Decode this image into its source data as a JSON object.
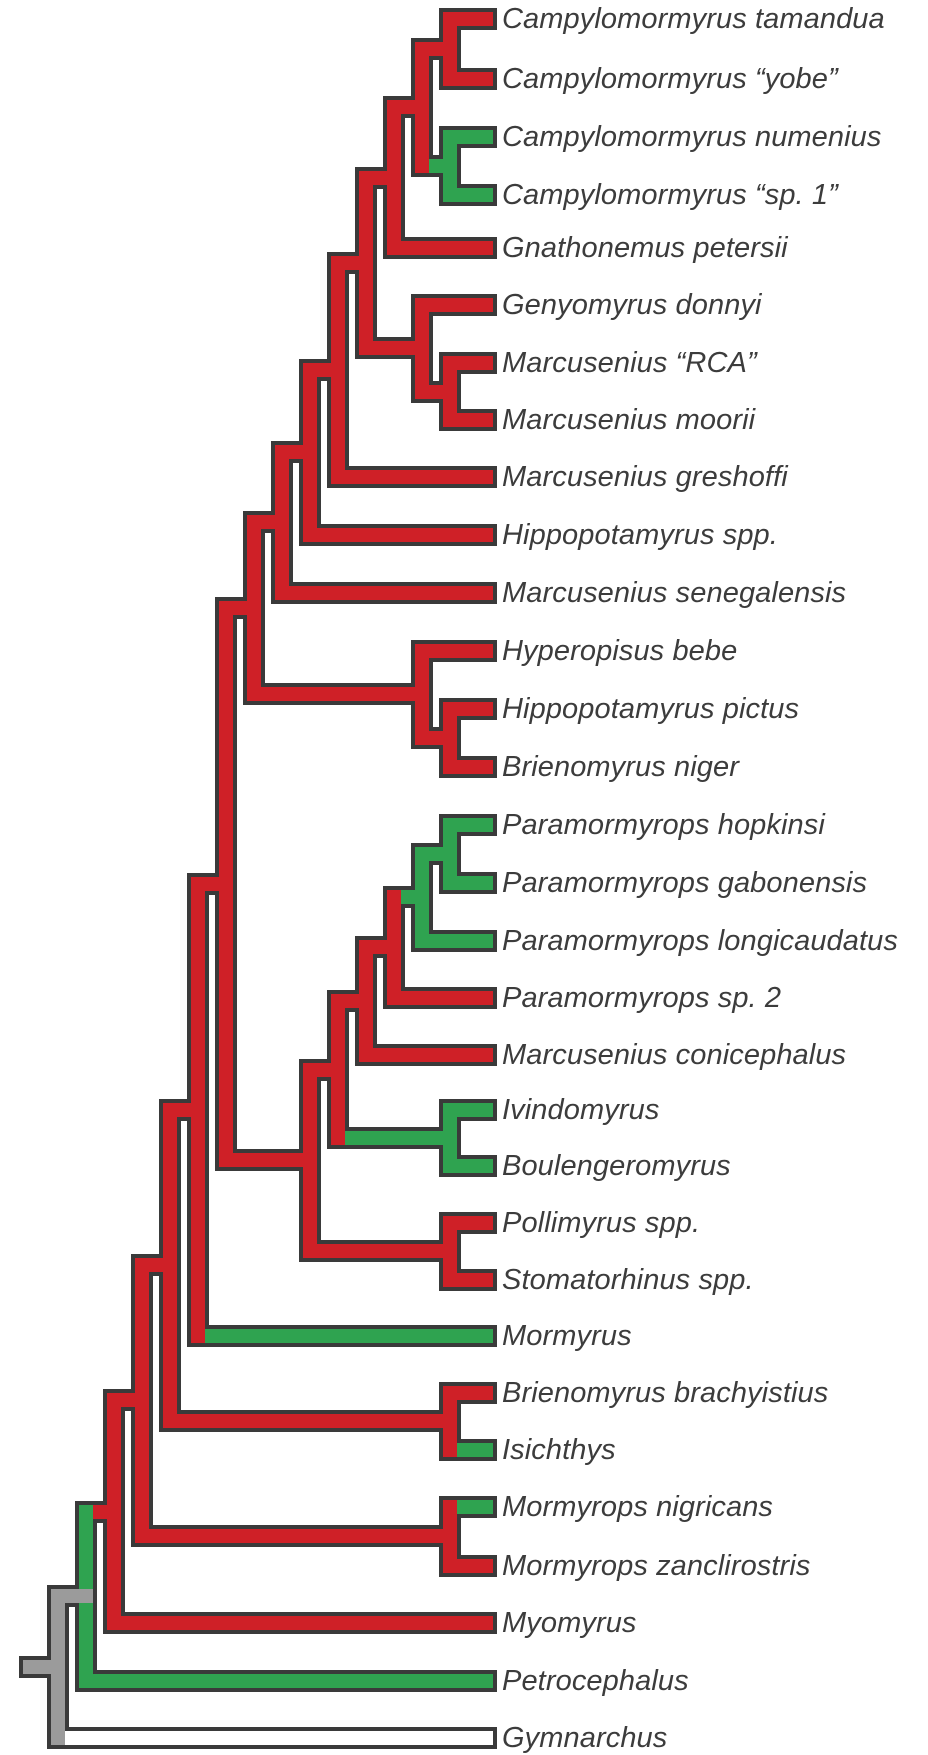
{
  "colors": {
    "red": "#cf2027",
    "green": "#2fa350",
    "gray": "#9b9b9b",
    "white": "#ffffff",
    "outline": "#3a3a3a",
    "label": "#3c3c3c"
  },
  "taxa": [
    "Campylomormyrus tamandua",
    "Campylomormyrus “yobe”",
    "Campylomormyrus numenius",
    "Campylomormyrus “sp. 1”",
    "Gnathonemus petersii",
    "Genyomyrus donnyi",
    "Marcusenius “RCA”",
    "Marcusenius moorii",
    "Marcusenius greshoffi",
    "Hippopotamyrus spp.",
    "Marcusenius senegalensis",
    "Hyperopisus bebe",
    "Hippopotamyrus pictus",
    "Brienomyrus niger",
    "Paramormyrops hopkinsi",
    "Paramormyrops gabonensis",
    "Paramormyrops longicaudatus",
    "Paramormyrops sp. 2",
    "Marcusenius conicephalus",
    "Ivindomyrus",
    "Boulengeromyrus",
    "Pollimyrus spp.",
    "Stomatorhinus spp.",
    "Mormyrus",
    "Brienomyrus brachyistius",
    "Isichthys",
    "Mormyrops nigricans",
    "Mormyrops zanclirostris",
    "Myomyrus",
    "Petrocephalus",
    "Gymnarchus"
  ]
}
